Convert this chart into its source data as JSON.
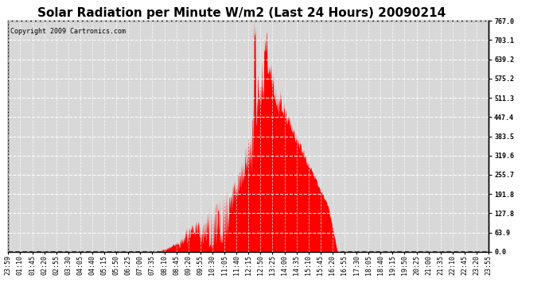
{
  "title": "Solar Radiation per Minute W/m2 (Last 24 Hours) 20090214",
  "copyright": "Copyright 2009 Cartronics.com",
  "background_color": "#ffffff",
  "plot_bg_color": "#d8d8d8",
  "fill_color": "#ff0000",
  "line_color": "#ff0000",
  "dashed_line_color": "#ff0000",
  "y_tick_labels": [
    "0.0",
    "63.9",
    "127.8",
    "191.8",
    "255.7",
    "319.6",
    "383.5",
    "447.4",
    "511.3",
    "575.2",
    "639.2",
    "703.1",
    "767.0"
  ],
  "y_tick_values": [
    0.0,
    63.9,
    127.8,
    191.8,
    255.7,
    319.6,
    383.5,
    447.4,
    511.3,
    575.2,
    639.2,
    703.1,
    767.0
  ],
  "ylim": [
    0.0,
    767.0
  ],
  "x_labels": [
    "23:59",
    "01:10",
    "01:45",
    "02:20",
    "02:55",
    "03:30",
    "04:05",
    "04:40",
    "05:15",
    "05:50",
    "06:25",
    "07:00",
    "07:35",
    "08:10",
    "08:45",
    "09:20",
    "09:55",
    "10:30",
    "11:05",
    "11:40",
    "12:15",
    "12:50",
    "13:25",
    "14:00",
    "14:35",
    "15:10",
    "15:45",
    "16:20",
    "16:55",
    "17:30",
    "18:05",
    "18:40",
    "19:15",
    "19:50",
    "20:25",
    "21:00",
    "21:35",
    "22:10",
    "22:45",
    "23:20",
    "23:55"
  ],
  "title_fontsize": 11,
  "copyright_fontsize": 6,
  "tick_fontsize": 6,
  "title_color": "#000000"
}
